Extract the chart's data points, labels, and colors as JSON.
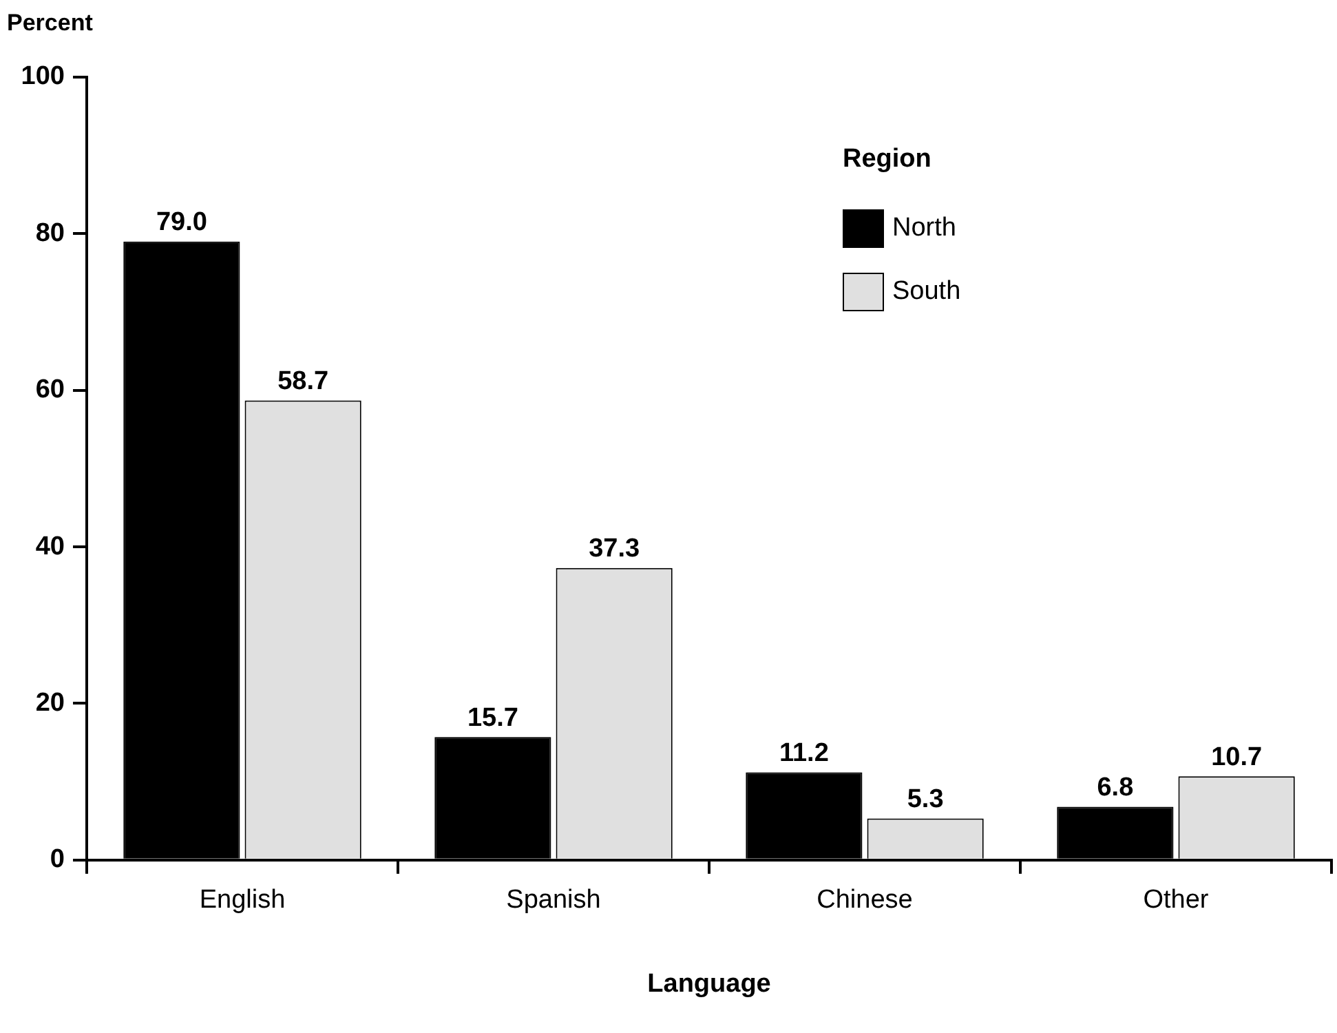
{
  "chart_data": {
    "type": "bar",
    "xlabel": "Language",
    "ylabel": "Percent",
    "legend_title": "Region",
    "categories": [
      "English",
      "Spanish",
      "Chinese",
      "Other"
    ],
    "series": [
      {
        "name": "North",
        "color": "#000000",
        "values": [
          79.0,
          15.7,
          11.2,
          6.8
        ],
        "value_labels": [
          "79.0",
          "15.7",
          "11.2",
          "6.8"
        ]
      },
      {
        "name": "South",
        "color": "#e0e0e0",
        "values": [
          58.7,
          37.3,
          5.3,
          10.7
        ],
        "value_labels": [
          "58.7",
          "37.3",
          "5.3",
          "10.7"
        ]
      }
    ],
    "ylim": [
      0,
      100
    ],
    "yticks": [
      0,
      20,
      40,
      60,
      80,
      100
    ],
    "grid": false,
    "legend": "top right"
  }
}
